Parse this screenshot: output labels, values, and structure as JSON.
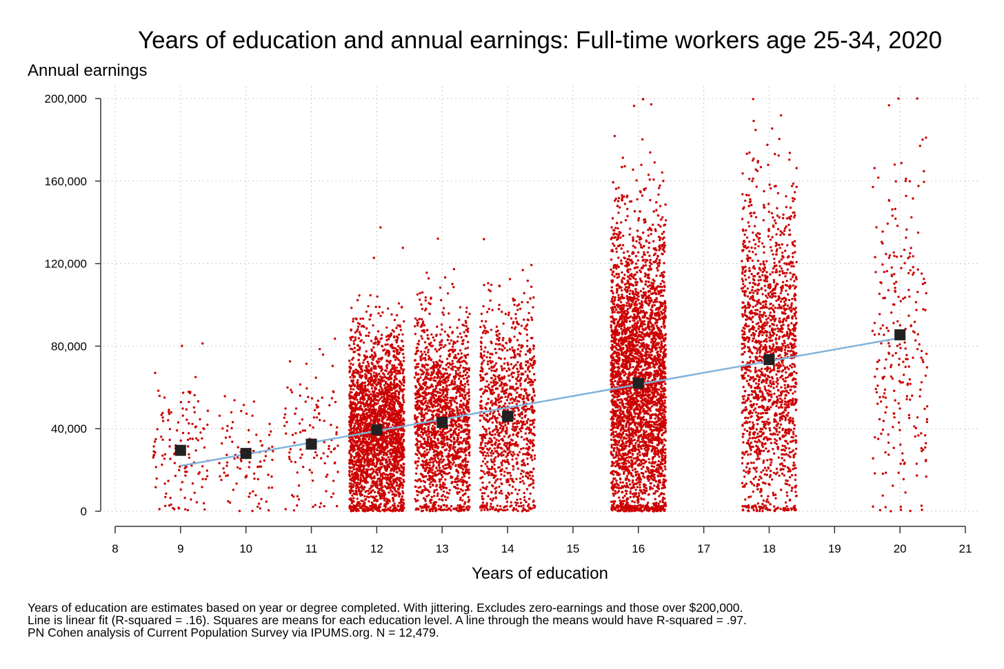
{
  "chart_data": {
    "type": "scatter",
    "title": "Years of education and annual earnings: Full-time workers age 25-34, 2020",
    "ylabel": "Annual earnings",
    "xlabel": "Years of education",
    "xlim": [
      8,
      21
    ],
    "ylim": [
      0,
      200000
    ],
    "x_ticks": [
      8,
      9,
      10,
      11,
      12,
      13,
      14,
      15,
      16,
      17,
      18,
      19,
      20,
      21
    ],
    "x_tick_labels": [
      "8",
      "9",
      "10",
      "11",
      "12",
      "13",
      "14",
      "15",
      "16",
      "17",
      "18",
      "19",
      "20",
      "21"
    ],
    "y_ticks": [
      0,
      40000,
      80000,
      120000,
      160000,
      200000
    ],
    "y_tick_labels": [
      "0",
      "40,000",
      "80,000",
      "120,000",
      "160,000",
      "200,000"
    ],
    "grid": true,
    "jitter_half_width": 0.42,
    "series": [
      {
        "kind": "scatter",
        "color": "#cc0000",
        "groups": [
          {
            "x": 9,
            "n": 130,
            "mean": 29000,
            "sd": 18000
          },
          {
            "x": 10,
            "n": 90,
            "mean": 27000,
            "sd": 16000
          },
          {
            "x": 11,
            "n": 110,
            "mean": 32000,
            "sd": 20000
          },
          {
            "x": 12,
            "n": 2700,
            "mean": 39000,
            "sd": 23000
          },
          {
            "x": 13,
            "n": 1650,
            "mean": 43000,
            "sd": 25000
          },
          {
            "x": 14,
            "n": 1100,
            "mean": 46000,
            "sd": 27000
          },
          {
            "x": 16,
            "n": 4300,
            "mean": 61000,
            "sd": 38000
          },
          {
            "x": 18,
            "n": 1700,
            "mean": 73000,
            "sd": 40000
          },
          {
            "x": 20,
            "n": 260,
            "mean": 85000,
            "sd": 45000
          }
        ]
      },
      {
        "kind": "line",
        "color": "#7fb3dc",
        "points": [
          [
            9,
            22000
          ],
          [
            20,
            84000
          ]
        ]
      },
      {
        "kind": "means",
        "color": "#222222",
        "x": [
          9,
          10,
          11,
          12,
          13,
          14,
          16,
          18,
          20
        ],
        "y": [
          29500,
          28000,
          32500,
          39500,
          43000,
          46000,
          62000,
          73500,
          85500
        ]
      }
    ],
    "notes": [
      "Years of education are estimates based on year or degree completed. With jittering. Excludes zero-earnings and those over $200,000.",
      "Line is linear fit (R-squared = .16). Squares are means for each education level. A line through the means would have R-squared = .97.",
      "PN Cohen analysis of Current Population Survey via IPUMS.org. N = 12,479."
    ]
  }
}
